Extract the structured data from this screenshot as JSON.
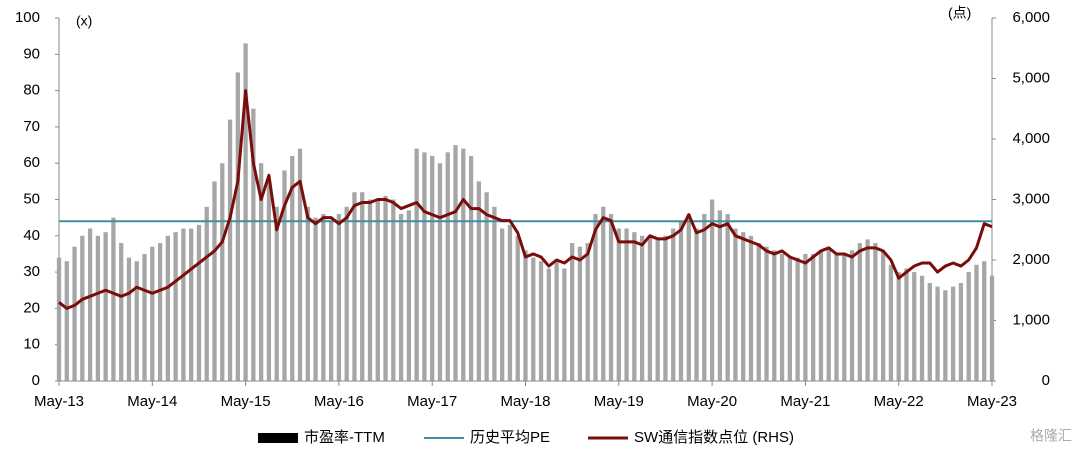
{
  "chart_data": {
    "type": "bar-line",
    "y_unit": "(x)",
    "y2_unit": "(点)",
    "categories": [
      "May-13",
      null,
      null,
      null,
      null,
      null,
      null,
      null,
      null,
      null,
      null,
      null,
      "May-14",
      null,
      null,
      null,
      null,
      null,
      null,
      null,
      null,
      null,
      null,
      null,
      "May-15",
      null,
      null,
      null,
      null,
      null,
      null,
      null,
      null,
      null,
      null,
      null,
      "May-16",
      null,
      null,
      null,
      null,
      null,
      null,
      null,
      null,
      null,
      null,
      null,
      "May-17",
      null,
      null,
      null,
      null,
      null,
      null,
      null,
      null,
      null,
      null,
      null,
      "May-18",
      null,
      null,
      null,
      null,
      null,
      null,
      null,
      null,
      null,
      null,
      null,
      "May-19",
      null,
      null,
      null,
      null,
      null,
      null,
      null,
      null,
      null,
      null,
      null,
      "May-20",
      null,
      null,
      null,
      null,
      null,
      null,
      null,
      null,
      null,
      null,
      null,
      "May-21",
      null,
      null,
      null,
      null,
      null,
      null,
      null,
      null,
      null,
      null,
      null,
      "May-22",
      null,
      null,
      null,
      null,
      null,
      null,
      null,
      null,
      null,
      null,
      null,
      "May-23"
    ],
    "series": [
      {
        "name": "市盈率-TTM",
        "color": "#a6a6a6",
        "type": "bar",
        "values": [
          34,
          33,
          37,
          40,
          42,
          40,
          41,
          45,
          38,
          34,
          33,
          35,
          37,
          38,
          40,
          41,
          42,
          42,
          43,
          48,
          55,
          60,
          72,
          85,
          93,
          75,
          60,
          55,
          48,
          58,
          62,
          64,
          48,
          45,
          46,
          44,
          46,
          48,
          52,
          52,
          50,
          50,
          51,
          50,
          46,
          47,
          64,
          63,
          62,
          60,
          63,
          65,
          64,
          62,
          55,
          52,
          48,
          42,
          43,
          40,
          36,
          34,
          33,
          31,
          33,
          31,
          38,
          37,
          38,
          46,
          48,
          46,
          42,
          42,
          41,
          40,
          40,
          39,
          40,
          42,
          44,
          46,
          42,
          46,
          50,
          47,
          46,
          42,
          41,
          40,
          38,
          37,
          36,
          35,
          34,
          34,
          35,
          35,
          36,
          37,
          35,
          35,
          36,
          38,
          39,
          38,
          36,
          32,
          30,
          31,
          30,
          29,
          27,
          26,
          25,
          26,
          27,
          30,
          32,
          33,
          29
        ]
      },
      {
        "name": "SW通信指数点位 (RHS)",
        "color": "#7a0c0c",
        "type": "line",
        "axis": "y2",
        "values": [
          1300,
          1200,
          1250,
          1350,
          1400,
          1450,
          1500,
          1450,
          1400,
          1450,
          1550,
          1500,
          1450,
          1500,
          1550,
          1650,
          1750,
          1850,
          1950,
          2050,
          2150,
          2300,
          2700,
          3300,
          4800,
          3600,
          3000,
          3400,
          2500,
          2900,
          3200,
          3300,
          2700,
          2600,
          2700,
          2700,
          2600,
          2700,
          2900,
          2950,
          2950,
          3000,
          3000,
          2950,
          2850,
          2900,
          2950,
          2800,
          2750,
          2700,
          2750,
          2800,
          3000,
          2850,
          2850,
          2750,
          2700,
          2650,
          2650,
          2450,
          2050,
          2100,
          2050,
          1900,
          2000,
          1950,
          2050,
          2000,
          2100,
          2500,
          2700,
          2650,
          2300,
          2300,
          2300,
          2250,
          2400,
          2350,
          2350,
          2400,
          2500,
          2750,
          2450,
          2500,
          2600,
          2550,
          2600,
          2400,
          2350,
          2300,
          2250,
          2150,
          2100,
          2150,
          2050,
          2000,
          1950,
          2050,
          2150,
          2200,
          2100,
          2100,
          2050,
          2150,
          2200,
          2200,
          2150,
          2000,
          1700,
          1800,
          1900,
          1950,
          1950,
          1800,
          1900,
          1950,
          1900,
          2000,
          2200,
          2600,
          2550
        ]
      }
    ],
    "average": {
      "name": "历史平均PE",
      "color": "#3f8fa0",
      "value": 44
    },
    "ylim": [
      0,
      100
    ],
    "yticks": [
      0,
      10,
      20,
      30,
      40,
      50,
      60,
      70,
      80,
      90,
      100
    ],
    "y2lim": [
      0,
      6000
    ],
    "y2ticks": [
      0,
      {
        "value": 1000,
        "label": "1,000"
      },
      {
        "value": 2000,
        "label": "2,000"
      },
      {
        "value": 3000,
        "label": "3,000"
      },
      {
        "value": 4000,
        "label": "4,000"
      },
      {
        "value": 5000,
        "label": "5,000"
      },
      {
        "value": 6000,
        "label": "6,000"
      }
    ],
    "watermark": "格隆汇"
  }
}
